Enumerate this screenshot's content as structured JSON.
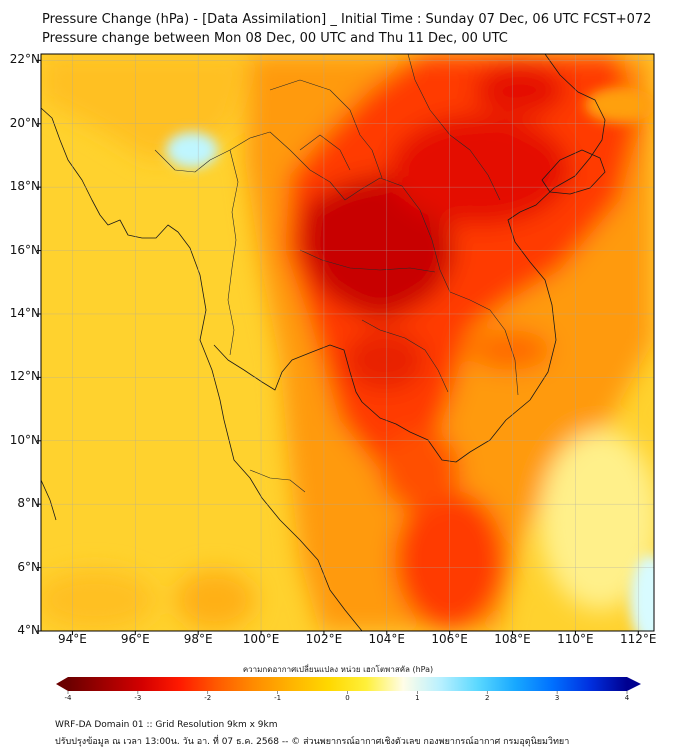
{
  "title": {
    "line1": "Pressure Change (hPa) - [Data Assimilation] _ Initial Time : Sunday 07 Dec, 06 UTC FCST+072",
    "line2": "Pressure change between Mon 08 Dec, 00 UTC and Thu 11 Dec, 00 UTC"
  },
  "map": {
    "lat_labels": [
      "22°N",
      "20°N",
      "18°N",
      "16°N",
      "14°N",
      "12°N",
      "10°N",
      "8°N",
      "6°N",
      "4°N"
    ],
    "lon_labels": [
      "94°E",
      "96°E",
      "98°E",
      "100°E",
      "102°E",
      "104°E",
      "106°E",
      "108°E",
      "110°E",
      "112°E"
    ],
    "lat_range": [
      4,
      22.2
    ],
    "lon_range": [
      93.0,
      112.5
    ],
    "gridlines": true
  },
  "colorbar": {
    "title": "ความกดอากาศเปลี่ยนแปลง หน่วย เฮกโตพาสคัล (hPa)",
    "range": [
      -4,
      4
    ],
    "tick_labels": [
      "-4",
      "-3",
      "-2",
      "-1",
      "0",
      "1",
      "2",
      "3",
      "4"
    ],
    "colors": [
      "#6b0000",
      "#a00000",
      "#d40000",
      "#ff1a00",
      "#ff5a00",
      "#ff8c00",
      "#ffb400",
      "#ffd800",
      "#fff03a",
      "#fffde8",
      "#b8f0ff",
      "#5ad8ff",
      "#18a8ff",
      "#0070ff",
      "#0030e0",
      "#000090"
    ],
    "extend": "both"
  },
  "footer": {
    "line1": "WRF-DA Domain 01 :: Grid Resolution 9km x 9km",
    "line2": "ปรับปรุงข้อมูล ณ เวลา 13:00น. วัน อา. ที่ 07 ธ.ค. 2568 -- © ส่วนพยากรณ์อากาศเชิงตัวเลข กองพยากรณ์อากาศ กรมอุตุนิยมวิทยา"
  }
}
